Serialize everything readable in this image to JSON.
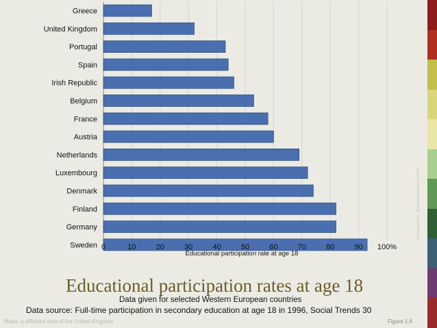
{
  "chart_data": {
    "type": "bar",
    "orientation": "horizontal",
    "categories": [
      "Greece",
      "United Kingdom",
      "Portugal",
      "Spain",
      "Irish Republic",
      "Belgium",
      "France",
      "Austria",
      "Netherlands",
      "Luxembourg",
      "Denmark",
      "Finland",
      "Germany",
      "Sweden"
    ],
    "values": [
      17,
      32,
      43,
      44,
      46,
      53,
      58,
      60,
      69,
      72,
      74,
      82,
      82,
      93
    ],
    "xlabel": "Educational participation rate at age 18",
    "xlim": [
      0,
      100
    ],
    "xticks": [
      "0",
      "10",
      "20",
      "30",
      "40",
      "50",
      "60",
      "70",
      "80",
      "90",
      "100%"
    ],
    "grid": true,
    "bar_color": "#4a6fb1"
  },
  "slide": {
    "title": "Educational participation rates at age 18",
    "subtitle": "Data given for selected Western European countries",
    "source": "Data source: Full-time participation in secondary education at age 18 in 1996, Social Trends 30",
    "footer_left": "Maps: a different view of the United Kingdom",
    "footer_right": "Figure 1.6",
    "side_text": "Photocopiable © Pearson Education Ltd 2005",
    "stripe_colors": [
      "#8e1c1a",
      "#b12f21",
      "#c4c04b",
      "#d8d57a",
      "#e9e6a8",
      "#a9cf8e",
      "#5e9a56",
      "#2e5f35",
      "#3f5f75",
      "#6e3a72",
      "#9a2b2c"
    ]
  }
}
